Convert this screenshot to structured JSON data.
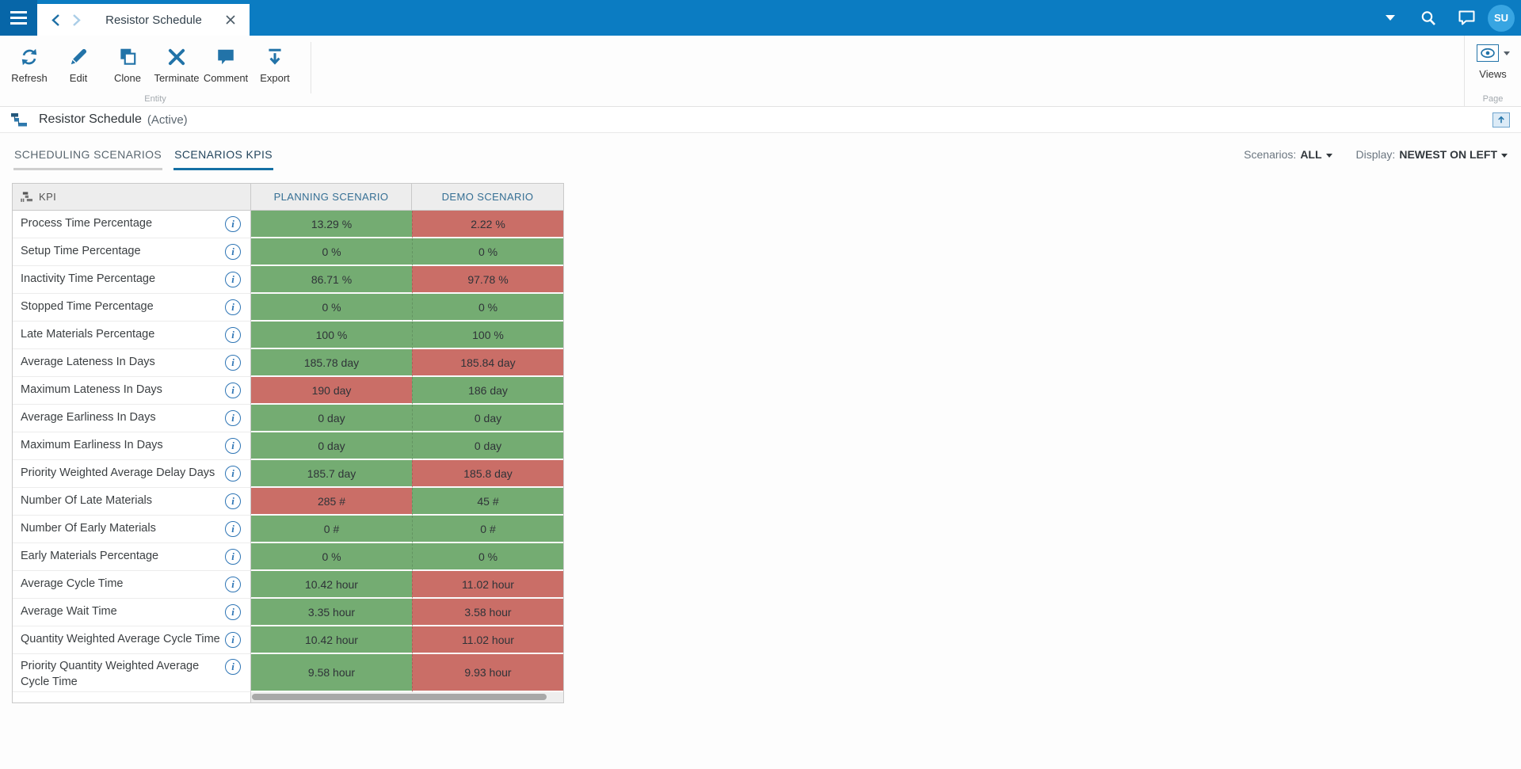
{
  "topbar": {
    "tab_title": "Resistor Schedule",
    "avatar_initials": "SU"
  },
  "toolbar": {
    "buttons": [
      {
        "label": "Refresh",
        "icon": "refresh-icon"
      },
      {
        "label": "Edit",
        "icon": "edit-icon"
      },
      {
        "label": "Clone",
        "icon": "clone-icon"
      },
      {
        "label": "Terminate",
        "icon": "terminate-icon"
      },
      {
        "label": "Comment",
        "icon": "comment-icon"
      },
      {
        "label": "Export",
        "icon": "export-icon"
      }
    ],
    "entity_group_label": "Entity",
    "views_label": "Views",
    "page_group_label": "Page"
  },
  "entity_header": {
    "title": "Resistor Schedule",
    "status": "(Active)"
  },
  "tabs": [
    {
      "label": "SCHEDULING SCENARIOS",
      "active": false
    },
    {
      "label": "SCENARIOS KPIS",
      "active": true
    }
  ],
  "filters": {
    "scenarios_label": "Scenarios:",
    "scenarios_value": "ALL",
    "display_label": "Display:",
    "display_value": "NEWEST ON LEFT"
  },
  "table": {
    "kpi_header": "KPI",
    "scenario_headers": [
      "PLANNING SCENARIO",
      "DEMO SCENARIO"
    ],
    "rows": [
      {
        "kpi": "Process Time Percentage",
        "values": [
          {
            "text": "13.29 %",
            "status": "green"
          },
          {
            "text": "2.22 %",
            "status": "red"
          }
        ]
      },
      {
        "kpi": "Setup Time Percentage",
        "values": [
          {
            "text": "0 %",
            "status": "green"
          },
          {
            "text": "0 %",
            "status": "green"
          }
        ]
      },
      {
        "kpi": "Inactivity Time Percentage",
        "values": [
          {
            "text": "86.71 %",
            "status": "green"
          },
          {
            "text": "97.78 %",
            "status": "red"
          }
        ]
      },
      {
        "kpi": "Stopped Time Percentage",
        "values": [
          {
            "text": "0 %",
            "status": "green"
          },
          {
            "text": "0 %",
            "status": "green"
          }
        ]
      },
      {
        "kpi": "Late Materials Percentage",
        "values": [
          {
            "text": "100 %",
            "status": "green"
          },
          {
            "text": "100 %",
            "status": "green"
          }
        ]
      },
      {
        "kpi": "Average Lateness In Days",
        "values": [
          {
            "text": "185.78 day",
            "status": "green"
          },
          {
            "text": "185.84 day",
            "status": "red"
          }
        ]
      },
      {
        "kpi": "Maximum Lateness In Days",
        "values": [
          {
            "text": "190 day",
            "status": "red"
          },
          {
            "text": "186 day",
            "status": "green"
          }
        ]
      },
      {
        "kpi": "Average Earliness In Days",
        "values": [
          {
            "text": "0 day",
            "status": "green"
          },
          {
            "text": "0 day",
            "status": "green"
          }
        ]
      },
      {
        "kpi": "Maximum Earliness In Days",
        "values": [
          {
            "text": "0 day",
            "status": "green"
          },
          {
            "text": "0 day",
            "status": "green"
          }
        ]
      },
      {
        "kpi": "Priority Weighted Average Delay Days",
        "values": [
          {
            "text": "185.7 day",
            "status": "green"
          },
          {
            "text": "185.8 day",
            "status": "red"
          }
        ]
      },
      {
        "kpi": "Number Of Late Materials",
        "values": [
          {
            "text": "285 #",
            "status": "red"
          },
          {
            "text": "45 #",
            "status": "green"
          }
        ]
      },
      {
        "kpi": "Number Of Early Materials",
        "values": [
          {
            "text": "0 #",
            "status": "green"
          },
          {
            "text": "0 #",
            "status": "green"
          }
        ]
      },
      {
        "kpi": "Early Materials Percentage",
        "values": [
          {
            "text": "0 %",
            "status": "green"
          },
          {
            "text": "0 %",
            "status": "green"
          }
        ]
      },
      {
        "kpi": "Average Cycle Time",
        "values": [
          {
            "text": "10.42 hour",
            "status": "green"
          },
          {
            "text": "11.02 hour",
            "status": "red"
          }
        ]
      },
      {
        "kpi": "Average Wait Time",
        "values": [
          {
            "text": "3.35 hour",
            "status": "green"
          },
          {
            "text": "3.58 hour",
            "status": "red"
          }
        ]
      },
      {
        "kpi": "Quantity Weighted Average Cycle Time",
        "values": [
          {
            "text": "10.42 hour",
            "status": "green"
          },
          {
            "text": "11.02 hour",
            "status": "red"
          }
        ]
      },
      {
        "kpi": "Priority Quantity Weighted Average Cycle Time",
        "wrap": true,
        "values": [
          {
            "text": "9.58 hour",
            "status": "green"
          },
          {
            "text": "9.93 hour",
            "status": "red"
          }
        ]
      }
    ]
  },
  "colors": {
    "good_green": "#74ac72",
    "bad_red": "#ca6e67",
    "topbar_blue": "#0b7cc2",
    "accent_blue": "#2273a8"
  }
}
